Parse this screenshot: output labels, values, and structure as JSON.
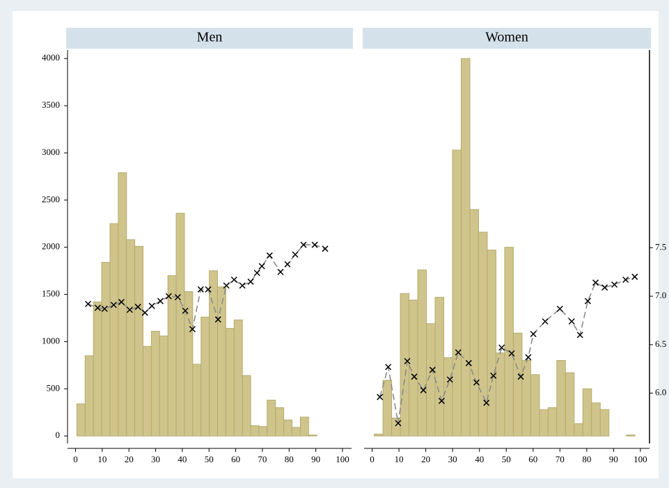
{
  "chart_data": {
    "type": "histogram",
    "bar_color": "#cfc58c",
    "bar_edge": "#b5aa6c",
    "marker_color": "#000000",
    "line_color": "#8a8a8a",
    "xlim": [
      -3,
      103.4
    ],
    "xticks": [
      0,
      10,
      20,
      30,
      40,
      50,
      60,
      70,
      80,
      90,
      100
    ],
    "ylim": [
      -80,
      4090
    ],
    "yticks": [
      0,
      500,
      1000,
      1500,
      2000,
      2500,
      3000,
      3500,
      4000
    ],
    "y2lim": [
      5.48,
      9.54
    ],
    "y2ticks": [
      {
        "value": 6,
        "label": "6.0"
      },
      6.5,
      {
        "value": 7,
        "label": "7.0"
      },
      7.5
    ],
    "panels": [
      {
        "title": "Men",
        "bins": [
          0.5,
          3.6,
          6.7,
          9.8,
          12.9,
          16,
          19.1,
          22.2,
          25.3,
          28.4,
          31.5,
          34.6,
          37.7,
          40.8,
          43.9,
          47,
          50.1,
          53.2,
          56.3,
          59.4,
          62.5,
          65.6,
          68.7,
          71.8,
          74.9,
          78,
          81.1,
          84.2,
          87.3,
          90.4
        ],
        "values": [
          340,
          850,
          1420,
          1840,
          2250,
          2790,
          2080,
          2010,
          950,
          1110,
          1060,
          1700,
          2360,
          1530,
          760,
          1260,
          1750,
          1580,
          1140,
          1230,
          640,
          110,
          100,
          380,
          300,
          170,
          90,
          200,
          10
        ],
        "points": {
          "x": [
            4.7,
            8.3,
            10.9,
            14.3,
            17.2,
            20.3,
            23.4,
            26,
            28.6,
            31.8,
            34.9,
            38.3,
            41.1,
            43.8,
            46.9,
            49.7,
            53.4,
            56.5,
            59.4,
            62.5,
            65.6,
            68,
            69.8,
            72.7,
            76.8,
            79.4,
            82.3,
            85.4,
            89.6,
            93.5
          ],
          "values": [
            6.92,
            6.88,
            6.87,
            6.91,
            6.94,
            6.86,
            6.89,
            6.83,
            6.9,
            6.95,
            7.0,
            6.99,
            6.85,
            6.66,
            7.07,
            7.07,
            6.76,
            7.11,
            7.17,
            7.11,
            7.15,
            7.24,
            7.31,
            7.42,
            7.25,
            7.33,
            7.43,
            7.53,
            7.53,
            7.49
          ]
        }
      },
      {
        "title": "Women",
        "bins": [
          0.8,
          4.04,
          7.28,
          10.52,
          13.76,
          17,
          20.24,
          23.48,
          26.72,
          29.96,
          33.2,
          36.44,
          39.68,
          42.92,
          46.16,
          49.4,
          52.64,
          55.88,
          59.12,
          62.36,
          65.6,
          68.84,
          72.08,
          75.32,
          78.56,
          81.8,
          85.04,
          88.28,
          91.52,
          94.76,
          98
        ],
        "values": [
          20,
          590,
          190,
          1510,
          1440,
          1760,
          1190,
          1470,
          830,
          3030,
          4000,
          2400,
          2160,
          1970,
          880,
          2000,
          1090,
          800,
          650,
          280,
          300,
          800,
          670,
          130,
          500,
          350,
          280,
          0,
          0,
          10
        ],
        "points": {
          "x": [
            2.9,
            6,
            9.7,
            13.1,
            15.7,
            19.1,
            22.5,
            25.9,
            29,
            32.1,
            36,
            38.9,
            42.6,
            45.2,
            48.3,
            52,
            55.4,
            58.2,
            60.1,
            64.5,
            70,
            74.4,
            77.5,
            80.4,
            83.3,
            86.7,
            90.3,
            94.5,
            97.9
          ],
          "values": [
            5.96,
            6.27,
            5.69,
            6.33,
            6.17,
            6.03,
            6.24,
            5.92,
            6.14,
            6.42,
            6.31,
            6.11,
            5.9,
            6.18,
            6.47,
            6.41,
            6.17,
            6.37,
            6.61,
            6.74,
            6.87,
            6.74,
            6.6,
            6.95,
            7.14,
            7.09,
            7.12,
            7.17,
            7.2
          ]
        }
      }
    ]
  }
}
